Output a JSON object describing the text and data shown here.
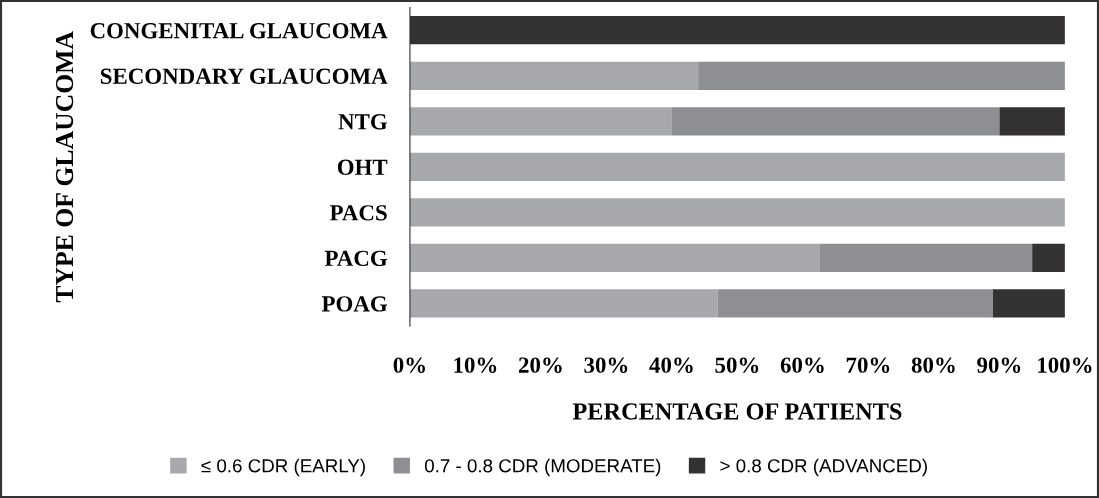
{
  "chart_data": {
    "type": "bar",
    "orientation": "horizontal",
    "stacked": true,
    "categories": [
      "CONGENITAL GLAUCOMA",
      "SECONDARY GLAUCOMA",
      "NTG",
      "OHT",
      "PACS",
      "PACG",
      "POAG"
    ],
    "series": [
      {
        "name": "≤ 0.6 CDR (EARLY)",
        "color": "#a7a8ab",
        "values": [
          0,
          44,
          40,
          100,
          100,
          62.5,
          47
        ]
      },
      {
        "name": "0.7 - 0.8 CDR (MODERATE)",
        "color": "#8e8f92",
        "values": [
          0,
          56,
          50,
          0,
          0,
          32.5,
          42
        ]
      },
      {
        "name": "> 0.8 CDR (ADVANCED)",
        "color": "#333132",
        "values": [
          100,
          0,
          10,
          0,
          0,
          5,
          11
        ]
      }
    ],
    "xlim": [
      0,
      100
    ],
    "xticks": [
      {
        "value": 0,
        "label": "0%"
      },
      {
        "value": 10,
        "label": "10%"
      },
      {
        "value": 20,
        "label": "20%"
      },
      {
        "value": 30,
        "label": "30%"
      },
      {
        "value": 40,
        "label": "40%"
      },
      {
        "value": 50,
        "label": "50%"
      },
      {
        "value": 60,
        "label": "60%"
      },
      {
        "value": 70,
        "label": "70%"
      },
      {
        "value": 80,
        "label": "80%"
      },
      {
        "value": 90,
        "label": "90%"
      },
      {
        "value": 100,
        "label": "100%"
      }
    ],
    "xlabel": "PERCENTAGE OF PATIENTS",
    "ylabel": "TYPE OF GLAUCOMA",
    "grid": false,
    "legend": "bottom"
  }
}
